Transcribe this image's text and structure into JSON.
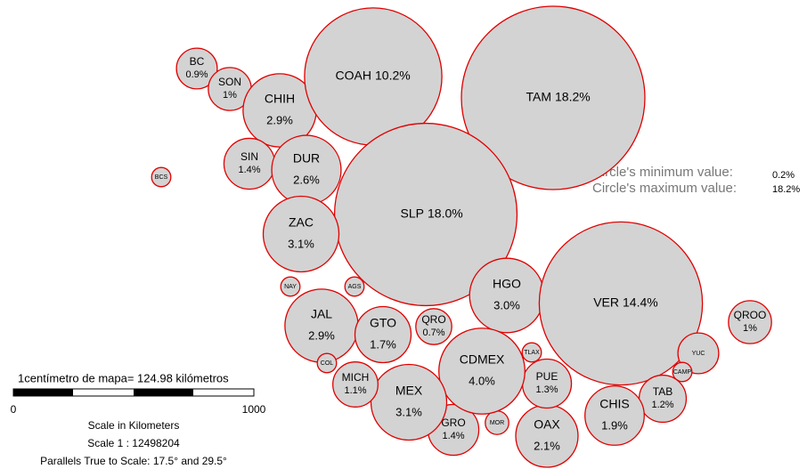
{
  "chart_data": {
    "type": "bubble",
    "categories": [
      "BC",
      "SON",
      "CHIH",
      "BCS",
      "SIN",
      "DUR",
      "COAH",
      "TAM",
      "SLP",
      "ZAC",
      "NAY",
      "AGS",
      "JAL",
      "GTO",
      "QRO",
      "HGO",
      "VER",
      "QROO",
      "YUC",
      "CAMP",
      "TAB",
      "CHIS",
      "OAX",
      "PUE",
      "TLAX",
      "MOR",
      "GRO",
      "CDMEX",
      "MEX",
      "MICH",
      "COL"
    ],
    "values": [
      0.9,
      1,
      2.9,
      0.2,
      1.4,
      2.6,
      10.2,
      18.2,
      18.0,
      3.1,
      0.2,
      0.2,
      2.9,
      1.7,
      0.7,
      3.0,
      14.4,
      1,
      0.9,
      0.2,
      1.2,
      1.9,
      2.1,
      1.3,
      0.2,
      0.3,
      1.4,
      4.0,
      3.1,
      1.1,
      0.2
    ],
    "value_labels": [
      "0.9%",
      "1%",
      "2.9%",
      null,
      "1.4%",
      "2.6%",
      "10.2%",
      "18.2%",
      "18.0%",
      "3.1%",
      null,
      null,
      "2.9%",
      "1.7%",
      "0.7%",
      "3.0%",
      "14.4%",
      "1%",
      null,
      null,
      "1.2%",
      "1.9%",
      "2.1%",
      "1.3%",
      null,
      null,
      "1.4%",
      "4.0%",
      "3.1%",
      "1.1%",
      null
    ],
    "color": "#d3d3d3",
    "stroke": "#e00000",
    "legend": {
      "min_label": "Circle's minimum value:",
      "min_value": "0.2%",
      "max_label": "Circle's maximum value:",
      "max_value": "18.2%"
    }
  },
  "scale": {
    "caption": "1centímetro de mapa= 124.98 kilómetros",
    "start": "0",
    "end": "1000",
    "units": "Scale in Kilometers",
    "ratio": "Scale 1 : 12498204",
    "parallels": "Parallels True to Scale: 17.5° and 29.5°"
  }
}
